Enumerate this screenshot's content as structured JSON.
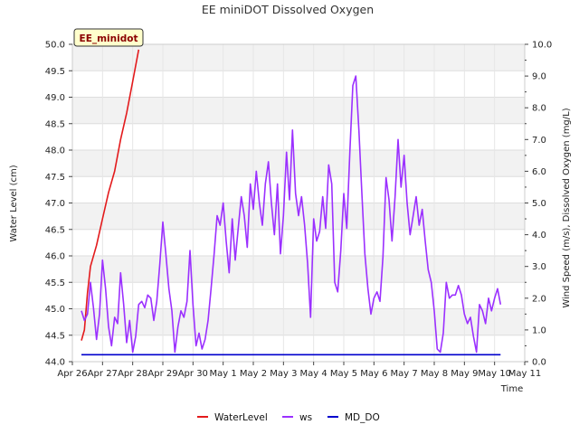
{
  "chart_data": {
    "type": "line",
    "title": "EE miniDOT Dissolved Oxygen",
    "station_label": "EE_minidot",
    "xlabel": "Time",
    "ylabel_left": "Water Level (cm)",
    "ylabel_right": "Wind Speed (m/s), Dissolved Oxygen (mg/L)",
    "x_ticks": [
      "Apr 26",
      "Apr 27",
      "Apr 28",
      "Apr 29",
      "Apr 30",
      "May 1",
      "May 2",
      "May 3",
      "May 4",
      "May 5",
      "May 6",
      "May 7",
      "May 8",
      "May 9",
      "May 10",
      "May 11"
    ],
    "x_range_days": [
      0,
      15
    ],
    "ylim_left": [
      44.0,
      50.0
    ],
    "yticks_left": [
      "44.0",
      "44.5",
      "45.0",
      "45.5",
      "46.0",
      "46.5",
      "47.0",
      "47.5",
      "48.0",
      "48.5",
      "49.0",
      "49.5",
      "50.0"
    ],
    "ylim_right": [
      0.0,
      10.0
    ],
    "yticks_right": [
      "0.0",
      "1.0",
      "2.0",
      "3.0",
      "4.0",
      "5.0",
      "6.0",
      "7.0",
      "8.0",
      "9.0",
      "10.0"
    ],
    "grid": true,
    "legend_position": "bottom-center",
    "series": [
      {
        "name": "WaterLevel",
        "axis": "left",
        "color": "#e31a1c",
        "x": [
          0.3,
          0.4,
          0.5,
          0.6,
          0.8,
          1.0,
          1.2,
          1.4,
          1.6,
          1.8,
          2.0,
          2.2
        ],
        "values": [
          44.4,
          44.6,
          45.3,
          45.8,
          46.2,
          46.7,
          47.2,
          47.6,
          48.2,
          48.7,
          49.3,
          49.9
        ]
      },
      {
        "name": "ws",
        "axis": "right",
        "color": "#9b30ff",
        "x": [
          0.3,
          0.4,
          0.5,
          0.6,
          0.7,
          0.8,
          0.9,
          1.0,
          1.1,
          1.2,
          1.3,
          1.4,
          1.5,
          1.6,
          1.7,
          1.8,
          1.9,
          2.0,
          2.1,
          2.2,
          2.3,
          2.4,
          2.5,
          2.6,
          2.7,
          2.8,
          2.9,
          3.0,
          3.1,
          3.2,
          3.3,
          3.4,
          3.5,
          3.6,
          3.7,
          3.8,
          3.9,
          4.0,
          4.1,
          4.2,
          4.3,
          4.4,
          4.5,
          4.6,
          4.7,
          4.8,
          4.9,
          5.0,
          5.1,
          5.2,
          5.3,
          5.4,
          5.5,
          5.6,
          5.7,
          5.8,
          5.9,
          6.0,
          6.1,
          6.2,
          6.3,
          6.4,
          6.5,
          6.6,
          6.7,
          6.8,
          6.9,
          7.0,
          7.1,
          7.2,
          7.3,
          7.4,
          7.5,
          7.6,
          7.7,
          7.8,
          7.9,
          8.0,
          8.1,
          8.2,
          8.3,
          8.4,
          8.5,
          8.6,
          8.7,
          8.8,
          8.9,
          9.0,
          9.1,
          9.2,
          9.3,
          9.4,
          9.5,
          9.6,
          9.7,
          9.8,
          9.9,
          10.0,
          10.1,
          10.2,
          10.3,
          10.4,
          10.5,
          10.6,
          10.7,
          10.8,
          10.9,
          11.0,
          11.1,
          11.2,
          11.3,
          11.4,
          11.5,
          11.6,
          11.7,
          11.8,
          11.9,
          12.0,
          12.1,
          12.2,
          12.3,
          12.4,
          12.5,
          12.6,
          12.7,
          12.8,
          12.9,
          13.0,
          13.1,
          13.2,
          13.3,
          13.4,
          13.5,
          13.6,
          13.7,
          13.8,
          13.9,
          14.0,
          14.1,
          14.2
        ],
        "values": [
          1.6,
          1.3,
          1.5,
          2.5,
          1.7,
          0.7,
          1.5,
          3.2,
          2.3,
          1.1,
          0.5,
          1.4,
          1.2,
          2.8,
          1.8,
          0.6,
          1.3,
          0.3,
          0.8,
          1.8,
          1.9,
          1.7,
          2.1,
          2.0,
          1.3,
          1.9,
          3.1,
          4.4,
          3.4,
          2.3,
          1.6,
          0.3,
          1.1,
          1.6,
          1.4,
          1.9,
          3.5,
          1.8,
          0.5,
          0.9,
          0.4,
          0.7,
          1.3,
          2.3,
          3.4,
          4.6,
          4.3,
          5.0,
          3.8,
          2.8,
          4.5,
          3.2,
          4.2,
          5.2,
          4.6,
          3.6,
          5.6,
          4.8,
          6.0,
          5.0,
          4.3,
          5.6,
          6.3,
          5.0,
          4.0,
          5.6,
          3.4,
          4.6,
          6.6,
          5.1,
          7.3,
          5.3,
          4.6,
          5.2,
          4.3,
          3.1,
          1.4,
          4.5,
          3.8,
          4.1,
          5.2,
          4.2,
          6.2,
          5.6,
          2.5,
          2.2,
          3.5,
          5.3,
          4.2,
          6.6,
          8.7,
          9.0,
          7.3,
          5.3,
          3.4,
          2.3,
          1.5,
          2.0,
          2.2,
          1.9,
          3.3,
          5.8,
          5.1,
          3.8,
          5.2,
          7.0,
          5.5,
          6.5,
          5.0,
          4.0,
          4.6,
          5.2,
          4.3,
          4.8,
          3.8,
          2.9,
          2.5,
          1.6,
          0.4,
          0.3,
          0.9,
          2.5,
          2.0,
          2.1,
          2.1,
          2.4,
          2.1,
          1.5,
          1.2,
          1.4,
          0.8,
          0.3,
          1.8,
          1.6,
          1.2,
          2.0,
          1.6,
          2.0,
          2.3,
          1.8
        ]
      },
      {
        "name": "MD_DO",
        "axis": "right",
        "color": "#0000cd",
        "x": [
          0.3,
          14.2
        ],
        "values": [
          0.22,
          0.22
        ]
      }
    ]
  }
}
